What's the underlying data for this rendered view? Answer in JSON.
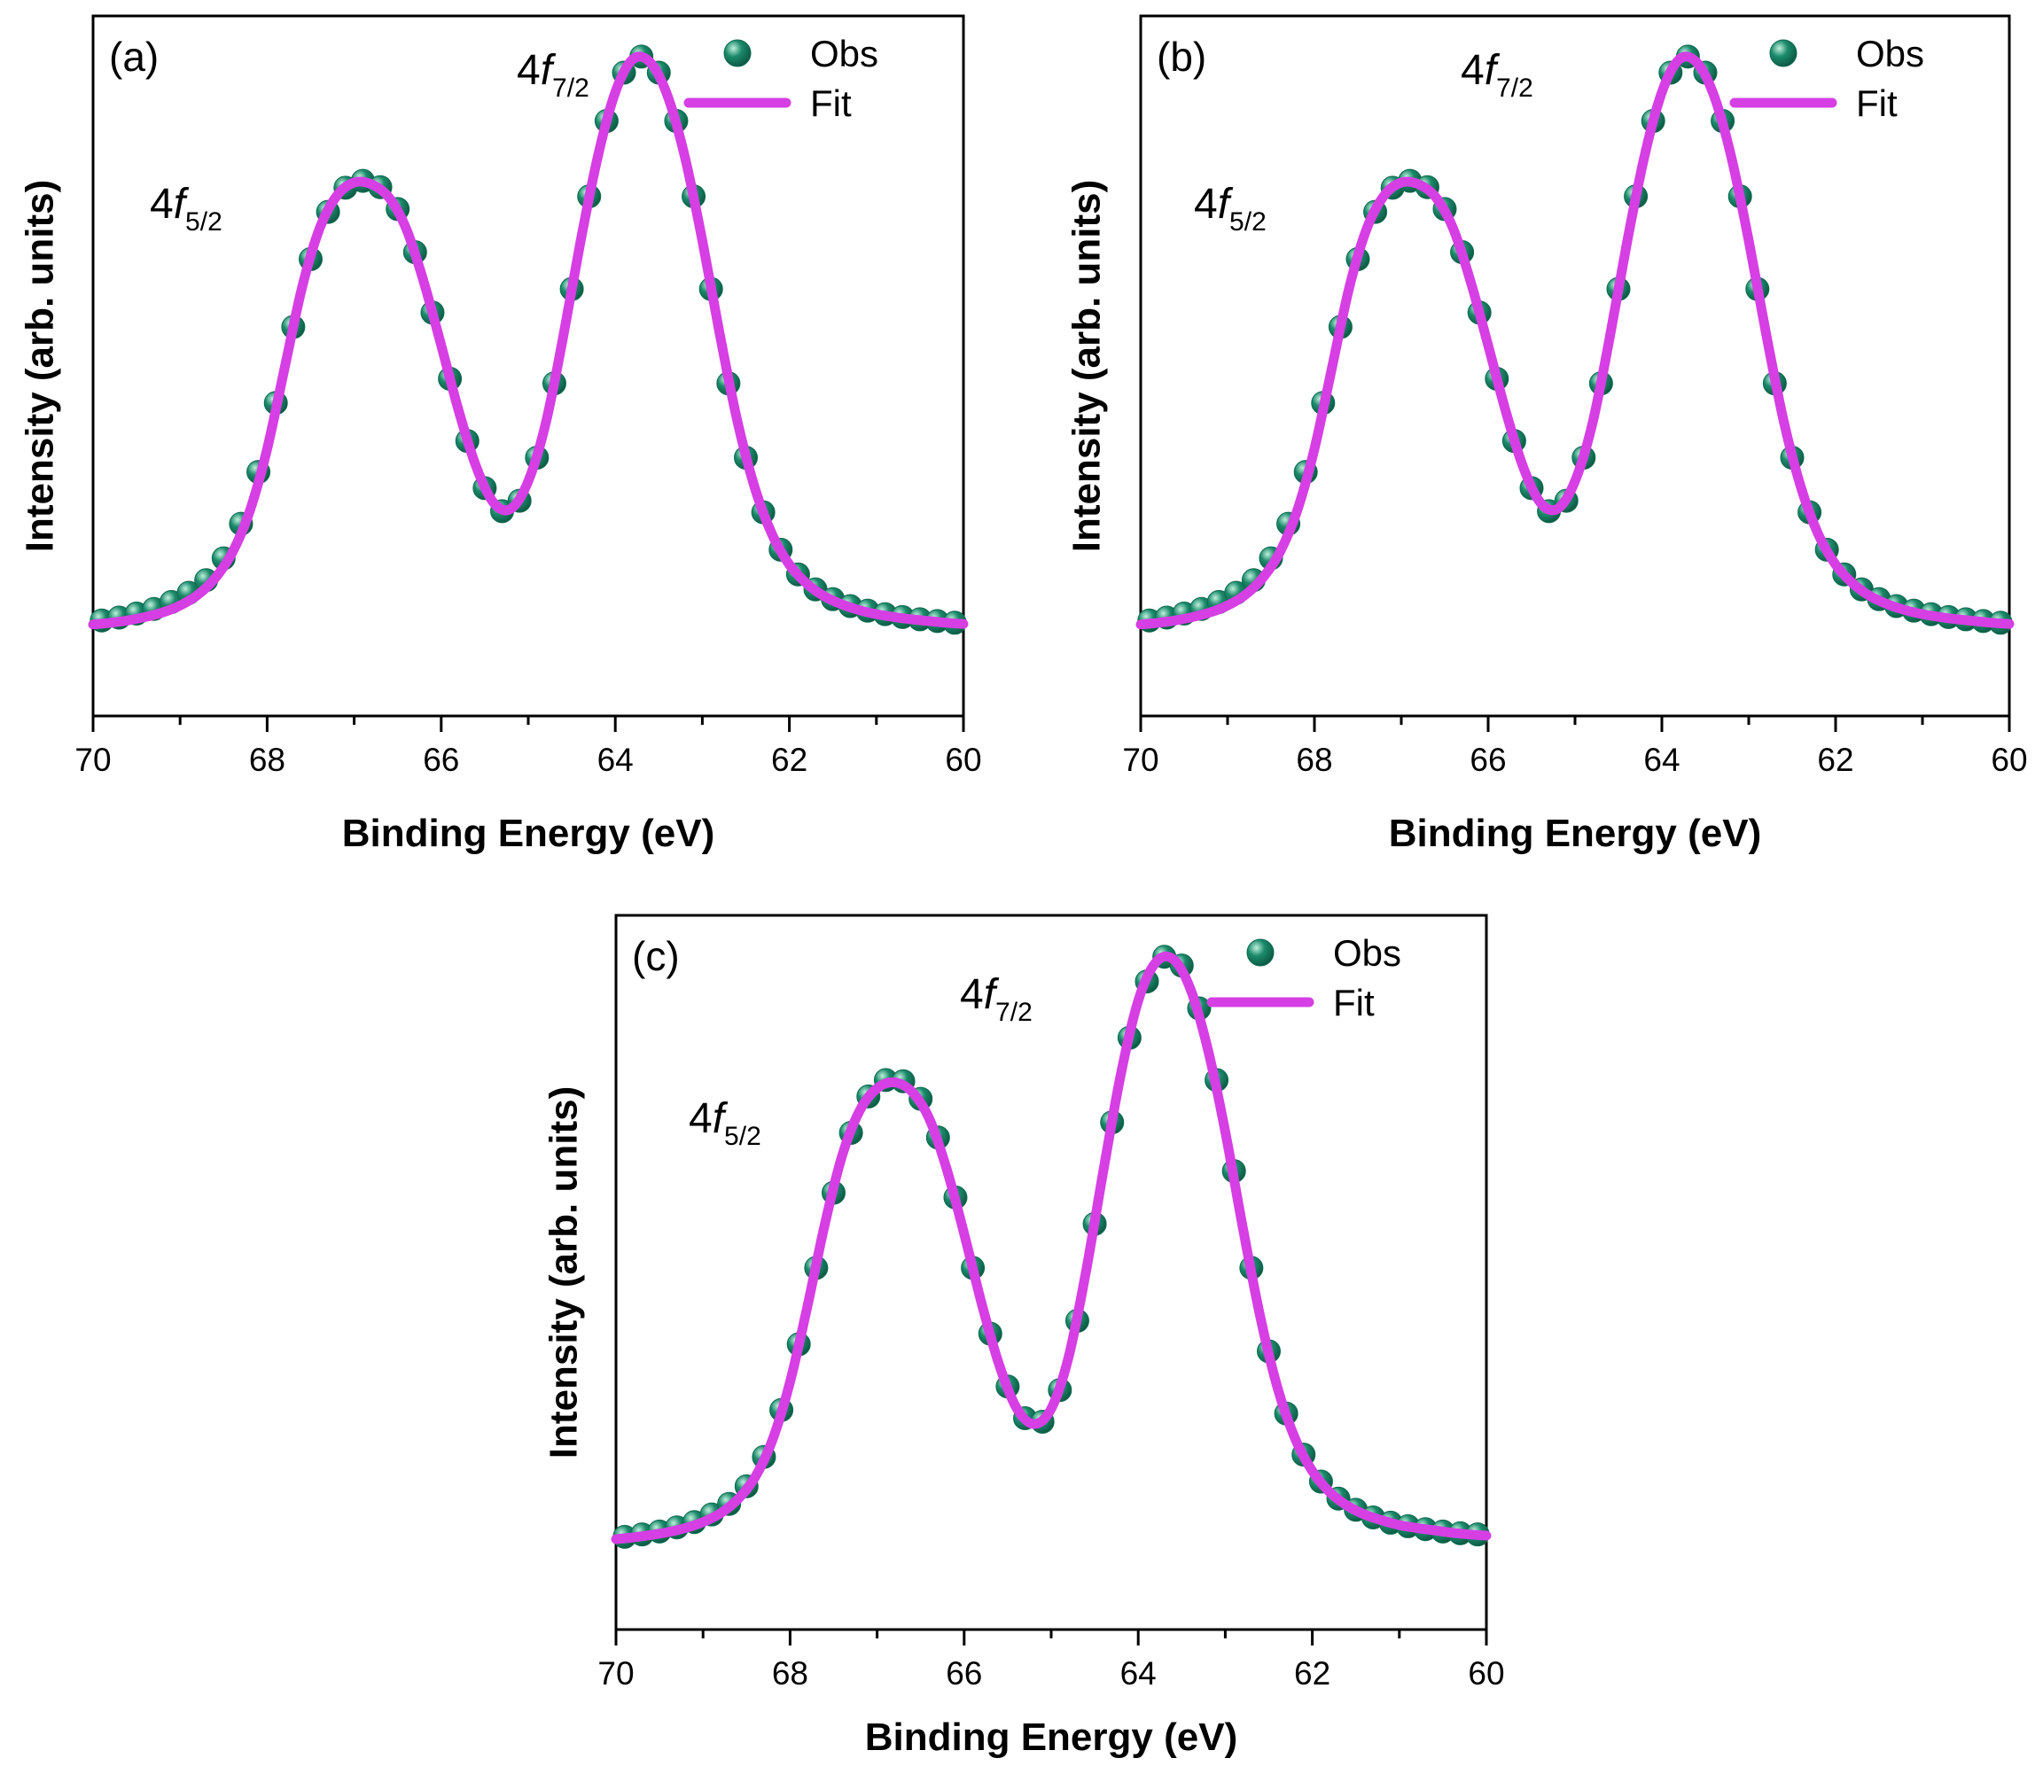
{
  "figure": {
    "marker_color": "#1b8a6b",
    "marker_highlight": "#bff0dc",
    "fit_color": "#d63fe3"
  },
  "chart_data": [
    {
      "type": "line",
      "panel_label": "(a)",
      "xlabel": "Binding Energy  (eV)",
      "ylabel": "Intensity (arb. units)",
      "xlim": [
        70,
        60
      ],
      "x_ticks": [
        "70",
        "68",
        "66",
        "64",
        "62",
        "60"
      ],
      "y_ticks": "none",
      "legend": {
        "placement": "top-right",
        "entries": [
          "Obs",
          "Fit"
        ]
      },
      "annotations": [
        {
          "main": "4f",
          "sub": "7/2",
          "near_x": 63.7
        },
        {
          "main": "4f",
          "sub": "5/2",
          "near_x": 66.7
        }
      ],
      "series": [
        {
          "name": "Obs",
          "kind": "scatter",
          "x": [
            69.9,
            69.7,
            69.5,
            69.3,
            69.1,
            68.9,
            68.7,
            68.5,
            68.3,
            68.1,
            67.9,
            67.7,
            67.5,
            67.3,
            67.1,
            66.9,
            66.7,
            66.5,
            66.3,
            66.1,
            65.9,
            65.7,
            65.5,
            65.3,
            65.1,
            64.9,
            64.7,
            64.5,
            64.3,
            64.1,
            63.9,
            63.7,
            63.5,
            63.3,
            63.1,
            62.9,
            62.7,
            62.5,
            62.3,
            62.1,
            61.9,
            61.7,
            61.5,
            61.3,
            61.1,
            60.9,
            60.7,
            60.5,
            60.3,
            60.1
          ],
          "y": [
            0.02,
            0.025,
            0.032,
            0.04,
            0.052,
            0.068,
            0.09,
            0.128,
            0.188,
            0.278,
            0.398,
            0.53,
            0.648,
            0.73,
            0.772,
            0.784,
            0.773,
            0.735,
            0.66,
            0.555,
            0.44,
            0.332,
            0.25,
            0.21,
            0.228,
            0.303,
            0.432,
            0.596,
            0.757,
            0.888,
            0.972,
            1.0,
            0.972,
            0.888,
            0.757,
            0.596,
            0.432,
            0.303,
            0.208,
            0.143,
            0.1,
            0.074,
            0.057,
            0.045,
            0.037,
            0.031,
            0.026,
            0.022,
            0.019,
            0.016
          ]
        },
        {
          "name": "Fit",
          "kind": "line",
          "x": [
            70.0,
            69.8,
            69.6,
            69.4,
            69.2,
            69.0,
            68.8,
            68.6,
            68.4,
            68.2,
            68.0,
            67.8,
            67.6,
            67.4,
            67.2,
            67.0,
            66.8,
            66.6,
            66.4,
            66.2,
            66.0,
            65.8,
            65.6,
            65.4,
            65.2,
            65.0,
            64.8,
            64.6,
            64.4,
            64.2,
            64.0,
            63.8,
            63.6,
            63.4,
            63.2,
            63.0,
            62.8,
            62.6,
            62.4,
            62.2,
            62.0,
            61.8,
            61.6,
            61.4,
            61.2,
            61.0,
            60.8,
            60.6,
            60.4,
            60.2,
            60.0
          ],
          "y": [
            0.013,
            0.016,
            0.02,
            0.026,
            0.034,
            0.046,
            0.064,
            0.093,
            0.138,
            0.21,
            0.318,
            0.458,
            0.598,
            0.7,
            0.758,
            0.781,
            0.778,
            0.755,
            0.7,
            0.608,
            0.498,
            0.385,
            0.288,
            0.225,
            0.214,
            0.262,
            0.362,
            0.512,
            0.678,
            0.827,
            0.938,
            0.995,
            0.99,
            0.932,
            0.825,
            0.68,
            0.518,
            0.368,
            0.252,
            0.17,
            0.117,
            0.084,
            0.062,
            0.048,
            0.038,
            0.031,
            0.026,
            0.022,
            0.019,
            0.016,
            0.014
          ]
        }
      ]
    },
    {
      "type": "line",
      "panel_label": "(b)",
      "xlabel": "Binding Energy  (eV)",
      "ylabel": "Intensity (arb. units)",
      "xlim": [
        70,
        60
      ],
      "x_ticks": [
        "70",
        "68",
        "66",
        "64",
        "62",
        "60"
      ],
      "y_ticks": "none",
      "legend": {
        "placement": "top-right",
        "entries": [
          "Obs",
          "Fit"
        ]
      },
      "annotations": [
        {
          "main": "4f",
          "sub": "7/2",
          "near_x": 63.7
        },
        {
          "main": "4f",
          "sub": "5/2",
          "near_x": 66.7
        }
      ],
      "series": [
        {
          "name": "Obs",
          "kind": "scatter",
          "x": [
            69.9,
            69.7,
            69.5,
            69.3,
            69.1,
            68.9,
            68.7,
            68.5,
            68.3,
            68.1,
            67.9,
            67.7,
            67.5,
            67.3,
            67.1,
            66.9,
            66.7,
            66.5,
            66.3,
            66.1,
            65.9,
            65.7,
            65.5,
            65.3,
            65.1,
            64.9,
            64.7,
            64.5,
            64.3,
            64.1,
            63.9,
            63.7,
            63.5,
            63.3,
            63.1,
            62.9,
            62.7,
            62.5,
            62.3,
            62.1,
            61.9,
            61.7,
            61.5,
            61.3,
            61.1,
            60.9,
            60.7,
            60.5,
            60.3,
            60.1
          ],
          "y": [
            0.02,
            0.025,
            0.032,
            0.04,
            0.052,
            0.068,
            0.09,
            0.128,
            0.188,
            0.278,
            0.398,
            0.53,
            0.648,
            0.73,
            0.772,
            0.784,
            0.773,
            0.735,
            0.66,
            0.555,
            0.44,
            0.332,
            0.25,
            0.21,
            0.228,
            0.303,
            0.432,
            0.596,
            0.757,
            0.888,
            0.972,
            1.0,
            0.972,
            0.888,
            0.757,
            0.596,
            0.432,
            0.303,
            0.208,
            0.143,
            0.1,
            0.074,
            0.057,
            0.045,
            0.037,
            0.031,
            0.026,
            0.022,
            0.019,
            0.016
          ]
        },
        {
          "name": "Fit",
          "kind": "line",
          "x": [
            70.0,
            69.8,
            69.6,
            69.4,
            69.2,
            69.0,
            68.8,
            68.6,
            68.4,
            68.2,
            68.0,
            67.8,
            67.6,
            67.4,
            67.2,
            67.0,
            66.8,
            66.6,
            66.4,
            66.2,
            66.0,
            65.8,
            65.6,
            65.4,
            65.2,
            65.0,
            64.8,
            64.6,
            64.4,
            64.2,
            64.0,
            63.8,
            63.6,
            63.4,
            63.2,
            63.0,
            62.8,
            62.6,
            62.4,
            62.2,
            62.0,
            61.8,
            61.6,
            61.4,
            61.2,
            61.0,
            60.8,
            60.6,
            60.4,
            60.2,
            60.0
          ],
          "y": [
            0.013,
            0.016,
            0.02,
            0.026,
            0.034,
            0.046,
            0.064,
            0.093,
            0.138,
            0.21,
            0.318,
            0.458,
            0.598,
            0.7,
            0.758,
            0.781,
            0.778,
            0.755,
            0.7,
            0.608,
            0.498,
            0.385,
            0.288,
            0.225,
            0.214,
            0.262,
            0.362,
            0.512,
            0.678,
            0.827,
            0.938,
            0.995,
            0.99,
            0.932,
            0.825,
            0.68,
            0.518,
            0.368,
            0.252,
            0.17,
            0.117,
            0.084,
            0.062,
            0.048,
            0.038,
            0.031,
            0.026,
            0.022,
            0.019,
            0.016,
            0.014
          ]
        }
      ]
    },
    {
      "type": "line",
      "panel_label": "(c)",
      "xlabel": "Binding Energy  (eV)",
      "ylabel": "Intensity (arb. units)",
      "xlim": [
        70,
        60
      ],
      "x_ticks": [
        "70",
        "68",
        "66",
        "64",
        "62",
        "60"
      ],
      "y_ticks": "none",
      "legend": {
        "placement": "top-right",
        "entries": [
          "Obs",
          "Fit"
        ]
      },
      "annotations": [
        {
          "main": "4f",
          "sub": "7/2",
          "near_x": 63.6
        },
        {
          "main": "4f",
          "sub": "5/2",
          "near_x": 66.6
        }
      ],
      "series": [
        {
          "name": "Obs",
          "kind": "scatter",
          "x": [
            69.9,
            69.7,
            69.5,
            69.3,
            69.1,
            68.9,
            68.7,
            68.5,
            68.3,
            68.1,
            67.9,
            67.7,
            67.5,
            67.3,
            67.1,
            66.9,
            66.7,
            66.5,
            66.3,
            66.1,
            65.9,
            65.7,
            65.5,
            65.3,
            65.1,
            64.9,
            64.7,
            64.5,
            64.3,
            64.1,
            63.9,
            63.7,
            63.5,
            63.3,
            63.1,
            62.9,
            62.7,
            62.5,
            62.3,
            62.1,
            61.9,
            61.7,
            61.5,
            61.3,
            61.1,
            60.9,
            60.7,
            60.5,
            60.3,
            60.1
          ],
          "y": [
            0.012,
            0.016,
            0.021,
            0.028,
            0.037,
            0.05,
            0.068,
            0.098,
            0.148,
            0.228,
            0.34,
            0.47,
            0.598,
            0.7,
            0.762,
            0.79,
            0.788,
            0.758,
            0.692,
            0.59,
            0.47,
            0.358,
            0.268,
            0.214,
            0.208,
            0.262,
            0.38,
            0.545,
            0.718,
            0.862,
            0.958,
            1.0,
            0.985,
            0.912,
            0.79,
            0.635,
            0.47,
            0.328,
            0.222,
            0.152,
            0.106,
            0.077,
            0.058,
            0.045,
            0.036,
            0.03,
            0.025,
            0.021,
            0.018,
            0.016
          ]
        },
        {
          "name": "Fit",
          "kind": "line",
          "x": [
            70.0,
            69.8,
            69.6,
            69.4,
            69.2,
            69.0,
            68.8,
            68.6,
            68.4,
            68.2,
            68.0,
            67.8,
            67.6,
            67.4,
            67.2,
            67.0,
            66.8,
            66.6,
            66.4,
            66.2,
            66.0,
            65.8,
            65.6,
            65.4,
            65.2,
            65.0,
            64.8,
            64.6,
            64.4,
            64.2,
            64.0,
            63.8,
            63.6,
            63.4,
            63.2,
            63.0,
            62.8,
            62.6,
            62.4,
            62.2,
            62.0,
            61.8,
            61.6,
            61.4,
            61.2,
            61.0,
            60.8,
            60.6,
            60.4,
            60.2,
            60.0
          ],
          "y": [
            0.008,
            0.011,
            0.015,
            0.02,
            0.027,
            0.037,
            0.052,
            0.076,
            0.114,
            0.178,
            0.276,
            0.405,
            0.545,
            0.662,
            0.738,
            0.776,
            0.786,
            0.77,
            0.724,
            0.638,
            0.528,
            0.41,
            0.306,
            0.232,
            0.204,
            0.23,
            0.318,
            0.464,
            0.636,
            0.8,
            0.925,
            0.99,
            0.996,
            0.945,
            0.842,
            0.702,
            0.54,
            0.388,
            0.266,
            0.18,
            0.124,
            0.088,
            0.065,
            0.05,
            0.04,
            0.032,
            0.027,
            0.023,
            0.019,
            0.016,
            0.014
          ]
        }
      ]
    }
  ]
}
